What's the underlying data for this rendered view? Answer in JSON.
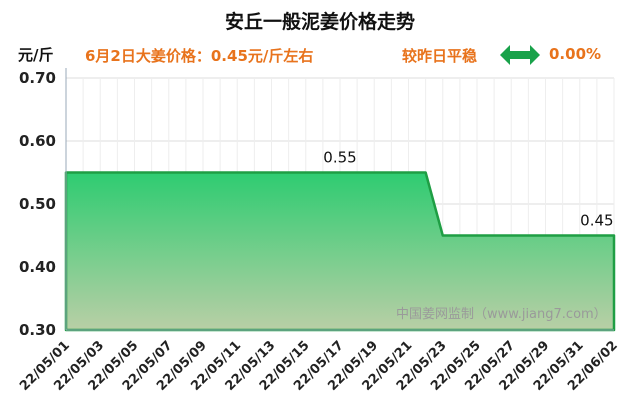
{
  "colors": {
    "fill_top": "#2ecc71",
    "fill_bottom": "#b9cfa6",
    "line": "#1f9e44",
    "accent": "#e8731c",
    "arrow": "#19a24a"
  },
  "header": {
    "title": "安丘一般泥姜价格走势",
    "unit": "元/斤",
    "price_note": "6月2日大姜价格：0.45元/斤左右",
    "compare_label": "较昨日平稳",
    "compare_icon": "double-arrow-icon",
    "compare_value": "0.00%"
  },
  "watermark": "中国姜网监制（www.jiang7.com）",
  "chart_data": {
    "type": "area",
    "title": "安丘一般泥姜价格走势",
    "ylabel": "元/斤",
    "xlabel": "",
    "ylim": [
      0.3,
      0.7
    ],
    "yticks": [
      "0.30",
      "0.40",
      "0.50",
      "0.60",
      "0.70"
    ],
    "yticks_values": [
      0.3,
      0.4,
      0.5,
      0.6,
      0.7
    ],
    "xticks": [
      "22/05/01",
      "22/05/03",
      "22/05/05",
      "22/05/07",
      "22/05/09",
      "22/05/11",
      "22/05/13",
      "22/05/15",
      "22/05/17",
      "22/05/19",
      "22/05/21",
      "22/05/23",
      "22/05/25",
      "22/05/27",
      "22/05/29",
      "22/05/31",
      "22/06/02"
    ],
    "x": [
      "22/05/01",
      "22/05/02",
      "22/05/03",
      "22/05/04",
      "22/05/05",
      "22/05/06",
      "22/05/07",
      "22/05/08",
      "22/05/09",
      "22/05/10",
      "22/05/11",
      "22/05/12",
      "22/05/13",
      "22/05/14",
      "22/05/15",
      "22/05/16",
      "22/05/17",
      "22/05/18",
      "22/05/19",
      "22/05/20",
      "22/05/21",
      "22/05/22",
      "22/05/23",
      "22/05/24",
      "22/05/25",
      "22/05/26",
      "22/05/27",
      "22/05/28",
      "22/05/29",
      "22/05/30",
      "22/05/31",
      "22/06/01",
      "22/06/02"
    ],
    "values": [
      0.55,
      0.55,
      0.55,
      0.55,
      0.55,
      0.55,
      0.55,
      0.55,
      0.55,
      0.55,
      0.55,
      0.55,
      0.55,
      0.55,
      0.55,
      0.55,
      0.55,
      0.55,
      0.55,
      0.55,
      0.55,
      0.55,
      0.45,
      0.45,
      0.45,
      0.45,
      0.45,
      0.45,
      0.45,
      0.45,
      0.45,
      0.45,
      0.45
    ],
    "annotations": [
      {
        "x": "22/05/17",
        "label": "0.55"
      },
      {
        "x": "22/06/01",
        "label": "0.45"
      }
    ],
    "grid": true,
    "legend": "none"
  }
}
